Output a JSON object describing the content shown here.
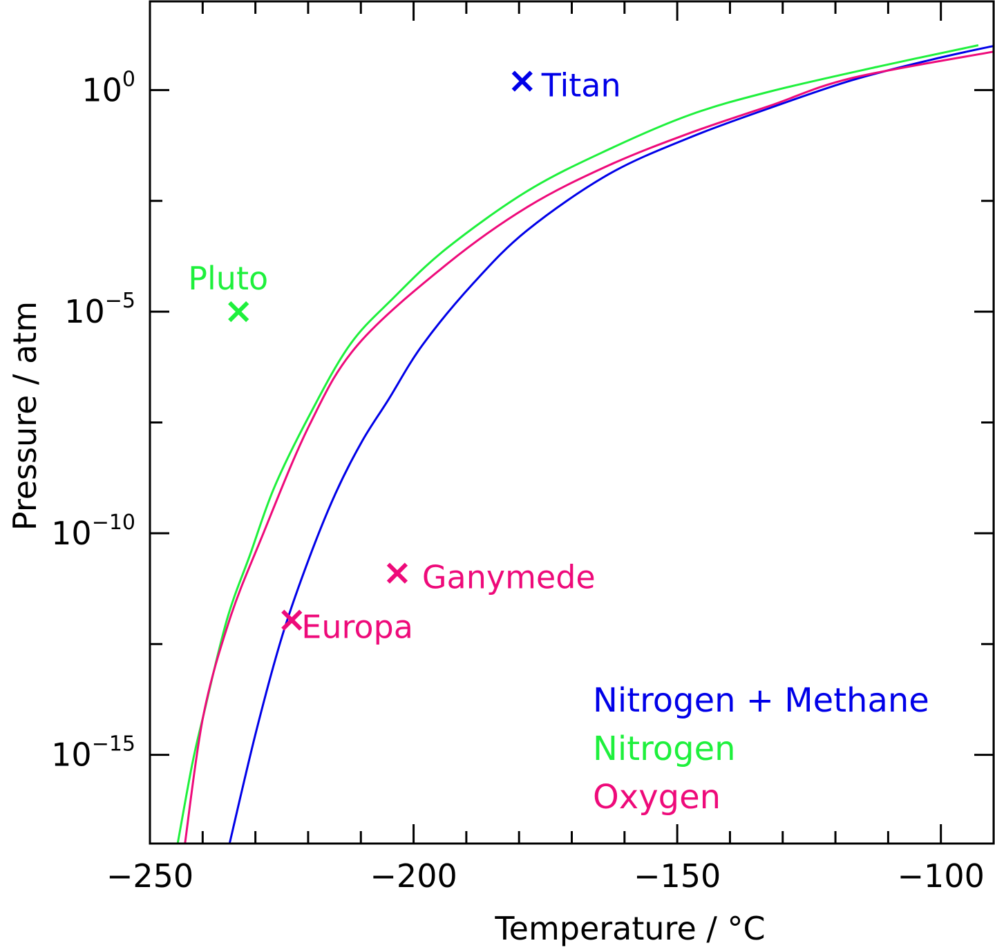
{
  "chart_data": {
    "type": "line",
    "xlabel": "Temperature / °C",
    "ylabel": "Pressure / atm",
    "xlim": [
      -250,
      -90
    ],
    "ylim_log10": [
      -17,
      2
    ],
    "y_scale": "log",
    "x_ticks": [
      -250,
      -200,
      -150,
      -100
    ],
    "x_tick_labels": [
      "−250",
      "−200",
      "−150",
      "−100"
    ],
    "y_ticks_exponent": [
      0,
      -5,
      -10,
      -15
    ],
    "y_tick_labels": [
      "10^0",
      "10^−5",
      "10^−10",
      "10^−15"
    ],
    "grid": false,
    "legend_placement": "bottom-right",
    "series": [
      {
        "name": "Nitrogen + Methane",
        "color": "#0000e8",
        "points_T_log10P": [
          [
            -234.9,
            -17.0
          ],
          [
            -229.9,
            -14.49
          ],
          [
            -224.9,
            -12.31
          ],
          [
            -219.8,
            -10.56
          ],
          [
            -214.8,
            -9.1
          ],
          [
            -209.8,
            -7.93
          ],
          [
            -204.8,
            -6.99
          ],
          [
            -198.3,
            -5.75
          ],
          [
            -188.6,
            -4.35
          ],
          [
            -178.3,
            -3.15
          ],
          [
            -163.0,
            -1.9
          ],
          [
            -147.6,
            -1.07
          ],
          [
            -132.3,
            -0.4
          ],
          [
            -116.9,
            0.22
          ],
          [
            -101.6,
            0.69
          ],
          [
            -89.8,
            1.0
          ]
        ]
      },
      {
        "name": "Nitrogen",
        "color": "#1ef03c",
        "points_T_log10P": [
          [
            -244.8,
            -17.04
          ],
          [
            -242.0,
            -15.22
          ],
          [
            -239.9,
            -14.13
          ],
          [
            -235.4,
            -11.95
          ],
          [
            -231.0,
            -10.48
          ],
          [
            -226.4,
            -8.96
          ],
          [
            -219.8,
            -7.35
          ],
          [
            -212.1,
            -5.75
          ],
          [
            -203.9,
            -4.7
          ],
          [
            -193.7,
            -3.57
          ],
          [
            -178.3,
            -2.27
          ],
          [
            -163.0,
            -1.34
          ],
          [
            -147.6,
            -0.56
          ],
          [
            -132.3,
            -0.03
          ],
          [
            -111.8,
            0.53
          ],
          [
            -92.9,
            1.01
          ]
        ]
      },
      {
        "name": "Oxygen",
        "color": "#ee0a7a",
        "points_T_log10P": [
          [
            -243.4,
            -17.04
          ],
          [
            -239.9,
            -14.13
          ],
          [
            -234.9,
            -11.95
          ],
          [
            -228.9,
            -10.12
          ],
          [
            -219.8,
            -7.57
          ],
          [
            -210.6,
            -5.75
          ],
          [
            -193.7,
            -3.93
          ],
          [
            -178.3,
            -2.63
          ],
          [
            -163.0,
            -1.7
          ],
          [
            -147.6,
            -0.97
          ],
          [
            -132.3,
            -0.35
          ],
          [
            -116.9,
            0.27
          ],
          [
            -89.8,
            0.87
          ]
        ]
      }
    ],
    "markers": [
      {
        "label": "Titan",
        "T": -179.4,
        "log10P": 0.2,
        "color": "#0000e8"
      },
      {
        "label": "Pluto",
        "T": -233.2,
        "log10P": -5.0,
        "color": "#1ef03c"
      },
      {
        "label": "Ganymede",
        "T": -203.1,
        "log10P": -10.9,
        "color": "#ee0a7a"
      },
      {
        "label": "Europa",
        "T": -223.1,
        "log10P": -11.96,
        "color": "#ee0a7a"
      }
    ]
  }
}
